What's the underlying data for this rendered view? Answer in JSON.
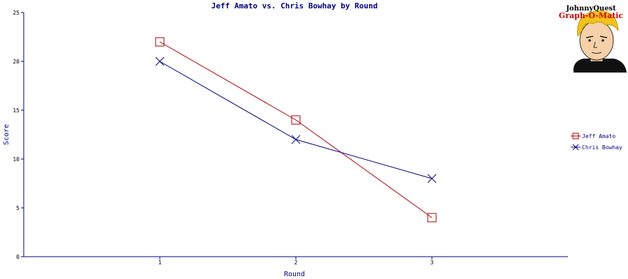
{
  "logo": {
    "line1": "JohnnyQuest",
    "line2": "Graph-O-Matic"
  },
  "chart_data": {
    "type": "line",
    "title": "Jeff Amato vs. Chris Bowhay by Round",
    "xlabel": "Round",
    "ylabel": "Score",
    "x": [
      1,
      2,
      3
    ],
    "ylim": [
      0,
      25
    ],
    "yticks": [
      0,
      5,
      10,
      15,
      20,
      25
    ],
    "grid": false,
    "legend": "right",
    "series": [
      {
        "name": "Jeff Amato",
        "values": [
          22,
          14,
          4
        ],
        "color": "#aa0000",
        "marker": "square"
      },
      {
        "name": "Chris Bowhay",
        "values": [
          20,
          12,
          8
        ],
        "color": "#000080",
        "marker": "x"
      }
    ]
  }
}
